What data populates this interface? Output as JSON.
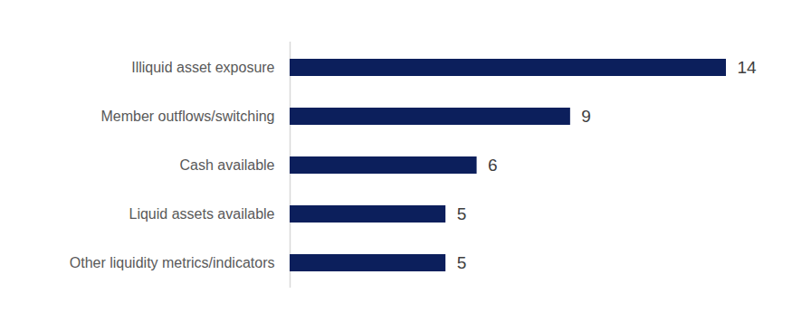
{
  "chart_data": {
    "type": "bar",
    "orientation": "horizontal",
    "categories": [
      "Illiquid asset exposure",
      "Member outflows/switching",
      "Cash available",
      "Liquid assets available",
      "Other liquidity metrics/indicators"
    ],
    "values": [
      14,
      9,
      6,
      5,
      5
    ],
    "color": "#0c1f5c",
    "xlim": [
      0,
      14
    ],
    "data_labels": true,
    "tick_labels": "y",
    "grid": false
  }
}
